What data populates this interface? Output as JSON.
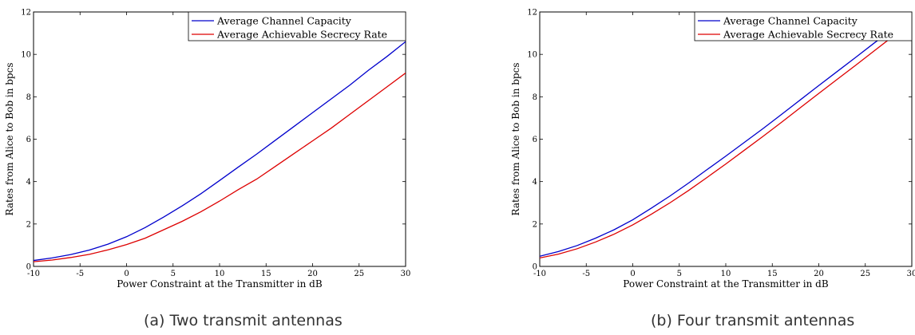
{
  "chart_data": [
    {
      "type": "line",
      "xlabel": "Power Constraint at the Transmitter in dB",
      "ylabel": "Rates from Alice to Bob in bpcs",
      "xlim": [
        -10,
        30
      ],
      "ylim": [
        0,
        12
      ],
      "xticks": [
        -10,
        -5,
        0,
        5,
        10,
        15,
        20,
        25,
        30
      ],
      "yticks": [
        0,
        2,
        4,
        6,
        8,
        10,
        12
      ],
      "grid": false,
      "legend_position": "top-right",
      "caption": "(a)  Two transmit antennas",
      "x": [
        -10,
        -8,
        -6,
        -4,
        -2,
        0,
        2,
        4,
        6,
        8,
        10,
        12,
        14,
        16,
        18,
        20,
        22,
        24,
        26,
        28,
        30
      ],
      "series": [
        {
          "name": "Average Channel Capacity",
          "color": "#0000cc",
          "values": [
            0.28,
            0.4,
            0.56,
            0.77,
            1.05,
            1.4,
            1.83,
            2.33,
            2.86,
            3.43,
            4.05,
            4.68,
            5.3,
            5.95,
            6.6,
            7.25,
            7.9,
            8.55,
            9.25,
            9.9,
            10.6
          ]
        },
        {
          "name": "Average Achievable Secrecy Rate",
          "color": "#dd0000",
          "values": [
            0.22,
            0.3,
            0.42,
            0.57,
            0.78,
            1.03,
            1.33,
            1.73,
            2.13,
            2.58,
            3.08,
            3.62,
            4.12,
            4.72,
            5.32,
            5.92,
            6.52,
            7.17,
            7.82,
            8.47,
            9.12
          ]
        }
      ]
    },
    {
      "type": "line",
      "xlabel": "Power Constraint at the Transmitter in dB",
      "ylabel": "Rates from Alice to Bob in bpcs",
      "xlim": [
        -10,
        30
      ],
      "ylim": [
        0,
        12
      ],
      "xticks": [
        -10,
        -5,
        0,
        5,
        10,
        15,
        20,
        25,
        30
      ],
      "yticks": [
        0,
        2,
        4,
        6,
        8,
        10,
        12
      ],
      "grid": false,
      "legend_position": "top-right",
      "caption": "(b)  Four transmit antennas",
      "x": [
        -10,
        -8,
        -6,
        -4,
        -2,
        0,
        2,
        4,
        6,
        8,
        10,
        12,
        14,
        16,
        18,
        20,
        22,
        24,
        26,
        28,
        30
      ],
      "series": [
        {
          "name": "Average Channel Capacity",
          "color": "#0000cc",
          "values": [
            0.48,
            0.7,
            0.98,
            1.33,
            1.73,
            2.2,
            2.75,
            3.32,
            3.93,
            4.57,
            5.2,
            5.85,
            6.5,
            7.17,
            7.85,
            8.53,
            9.2,
            9.87,
            10.55,
            11.2,
            11.85
          ]
        },
        {
          "name": "Average Achievable Secrecy Rate",
          "color": "#dd0000",
          "values": [
            0.4,
            0.58,
            0.83,
            1.15,
            1.52,
            1.96,
            2.46,
            3.0,
            3.58,
            4.2,
            4.83,
            5.48,
            6.13,
            6.8,
            7.48,
            8.16,
            8.83,
            9.5,
            10.18,
            10.86,
            11.54
          ]
        }
      ]
    }
  ]
}
